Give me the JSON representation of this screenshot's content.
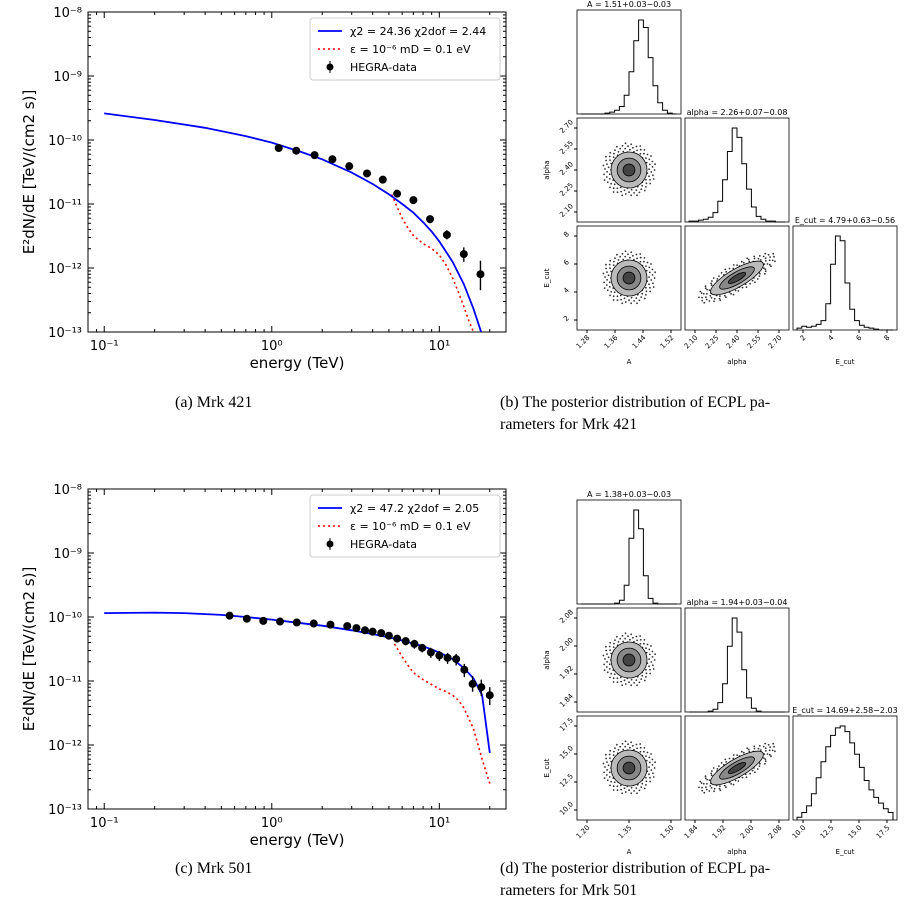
{
  "captions": {
    "a": "(a) Mrk 421",
    "b_line1": "(b) The posterior distribution of ECPL pa-",
    "b_line2": "rameters for Mrk 421",
    "c": "(c) Mrk 501",
    "d_line1": "(d) The posterior distribution of ECPL pa-",
    "d_line2": "rameters for Mrk 501"
  },
  "chart_data": [
    {
      "id": "a",
      "type": "line",
      "xlabel": "energy (TeV)",
      "ylabel": "E²dN/dE [TeV/(cm2 s)]",
      "xscale": "log",
      "yscale": "log",
      "xlim": [
        0.08,
        25
      ],
      "ylim": [
        1e-13,
        1e-08
      ],
      "xticks": [
        "10⁻¹",
        "10⁰",
        "10¹"
      ],
      "yticks": [
        "10⁻¹³",
        "10⁻¹²",
        "10⁻¹¹",
        "10⁻¹⁰",
        "10⁻⁹",
        "10⁻⁸"
      ],
      "legend_position": "top-right",
      "legend": [
        "χ2 = 24.36 χ2dof = 2.44",
        "ε = 10⁻⁶  mD = 0.1 eV",
        "HEGRA-data"
      ],
      "colors": {
        "fit": "#0000ff",
        "alp": "#ff0000",
        "data": "#000000"
      },
      "series": [
        {
          "name": "χ2 = 24.36 χ2dof = 2.44",
          "x": [
            0.1,
            0.2,
            0.4,
            0.7,
            1,
            1.5,
            2,
            3,
            4,
            5,
            6,
            7,
            8,
            9,
            10,
            12,
            14,
            16,
            18
          ],
          "y": [
            2.6e-10,
            2.05e-10,
            1.55e-10,
            1.15e-10,
            9.1e-11,
            6.5e-11,
            5e-11,
            3.1e-11,
            2.05e-11,
            1.42e-11,
            1e-11,
            7.3e-12,
            5.2e-12,
            3.7e-12,
            2.6e-12,
            1.25e-12,
            5.6e-13,
            2.3e-13,
            9e-14
          ]
        },
        {
          "name": "ε = 10⁻⁶  mD = 0.1 eV",
          "x": [
            5.2,
            5.6,
            6,
            6.5,
            7,
            8,
            9,
            10,
            11,
            12,
            13,
            14,
            15,
            16
          ],
          "y": [
            1.4e-11,
            9e-12,
            6e-12,
            4.2e-12,
            3.2e-12,
            2.4e-12,
            2e-12,
            1.6e-12,
            1.1e-12,
            7e-13,
            4.2e-13,
            2.5e-13,
            1.5e-13,
            1e-13
          ]
        },
        {
          "name": "HEGRA-data",
          "x": [
            1.1,
            1.4,
            1.8,
            2.3,
            2.9,
            3.7,
            4.6,
            5.6,
            7.0,
            8.8,
            11.1,
            14.0,
            17.6
          ],
          "y": [
            7.5e-11,
            6.8e-11,
            5.8e-11,
            5e-11,
            3.9e-11,
            3e-11,
            2.4e-11,
            1.45e-11,
            1.15e-11,
            5.8e-12,
            3.3e-12,
            1.65e-12,
            8e-13
          ],
          "err_lo": [
            6.8e-11,
            6.2e-11,
            5.3e-11,
            4.6e-11,
            3.6e-11,
            2.75e-11,
            2.15e-11,
            1.28e-11,
            1e-11,
            5e-12,
            2.8e-12,
            1.25e-12,
            4.5e-13
          ],
          "err_hi": [
            8.2e-11,
            7.4e-11,
            6.3e-11,
            5.4e-11,
            4.2e-11,
            3.25e-11,
            2.65e-11,
            1.62e-11,
            1.3e-11,
            6.6e-12,
            3.9e-12,
            2.1e-12,
            1.3e-12
          ]
        }
      ]
    },
    {
      "id": "c",
      "type": "line",
      "xlabel": "energy (TeV)",
      "ylabel": "E²dN/dE [TeV/(cm2 s)]",
      "xscale": "log",
      "yscale": "log",
      "xlim": [
        0.08,
        25
      ],
      "ylim": [
        1e-13,
        1e-08
      ],
      "xticks": [
        "10⁻¹",
        "10⁰",
        "10¹"
      ],
      "yticks": [
        "10⁻¹³",
        "10⁻¹²",
        "10⁻¹¹",
        "10⁻¹⁰",
        "10⁻⁹",
        "10⁻⁸"
      ],
      "legend_position": "top-right",
      "legend": [
        "χ2 = 47.2 χ2dof = 2.05",
        "ε = 10⁻⁶  mD = 0.1 eV",
        "HEGRA-data"
      ],
      "colors": {
        "fit": "#0000ff",
        "alp": "#ff0000",
        "data": "#000000"
      },
      "series": [
        {
          "name": "χ2 = 47.2 χ2dof = 2.05",
          "x": [
            0.1,
            0.2,
            0.3,
            0.5,
            0.7,
            1,
            1.5,
            2,
            3,
            4,
            5,
            6,
            8,
            10,
            12,
            14,
            16,
            18,
            20
          ],
          "y": [
            1.15e-10,
            1.17e-10,
            1.15e-10,
            1.08e-10,
            1e-10,
            9.1e-11,
            8e-11,
            7.3e-11,
            6.2e-11,
            5.4e-11,
            4.8e-11,
            4.3e-11,
            3.5e-11,
            2.8e-11,
            2.2e-11,
            1.6e-11,
            1.1e-11,
            6e-12,
            7.5e-13
          ]
        },
        {
          "name": "ε = 10⁻⁶  mD = 0.1 eV",
          "x": [
            5.4,
            6,
            6.5,
            7,
            8,
            9,
            10,
            11,
            12,
            13,
            14,
            16,
            18,
            20
          ],
          "y": [
            3.8e-11,
            2.4e-11,
            1.75e-11,
            1.35e-11,
            1.05e-11,
            8.8e-12,
            7.5e-12,
            6.8e-12,
            6e-12,
            5e-12,
            3.8e-12,
            1.8e-12,
            6e-13,
            2.5e-13
          ]
        },
        {
          "name": "HEGRA-data",
          "x": [
            0.56,
            0.71,
            0.89,
            1.12,
            1.41,
            1.78,
            2.24,
            2.82,
            3.2,
            3.6,
            4.0,
            4.5,
            5.0,
            5.6,
            6.3,
            7.1,
            7.9,
            8.9,
            10.0,
            11.2,
            12.6,
            14.1,
            15.8,
            17.8,
            20.0
          ],
          "y": [
            1.05e-10,
            9.4e-11,
            8.7e-11,
            8.5e-11,
            8.2e-11,
            7.9e-11,
            7.6e-11,
            7.2e-11,
            6.7e-11,
            6.2e-11,
            5.9e-11,
            5.6e-11,
            5.1e-11,
            4.6e-11,
            4.2e-11,
            3.8e-11,
            3.3e-11,
            2.8e-11,
            2.5e-11,
            2.3e-11,
            2.2e-11,
            1.5e-11,
            9e-12,
            8e-12,
            6e-12
          ],
          "err_lo": [
            9.6e-11,
            8.7e-11,
            8.1e-11,
            7.9e-11,
            7.6e-11,
            7.3e-11,
            7e-11,
            6.6e-11,
            6.1e-11,
            5.6e-11,
            5.3e-11,
            5e-11,
            4.5e-11,
            4e-11,
            3.6e-11,
            3.2e-11,
            2.8e-11,
            2.3e-11,
            2.05e-11,
            1.85e-11,
            1.75e-11,
            1.15e-11,
            6.8e-12,
            5.8e-12,
            4.2e-12
          ],
          "err_hi": [
            1.14e-10,
            1.01e-10,
            9.3e-11,
            9.1e-11,
            8.8e-11,
            8.5e-11,
            8.2e-11,
            7.8e-11,
            7.3e-11,
            6.8e-11,
            6.5e-11,
            6.2e-11,
            5.7e-11,
            5.2e-11,
            4.8e-11,
            4.4e-11,
            3.8e-11,
            3.3e-11,
            2.95e-11,
            2.75e-11,
            2.65e-11,
            1.85e-11,
            1.2e-11,
            1.05e-11,
            8e-12
          ]
        }
      ]
    },
    {
      "id": "b",
      "type": "heatmap",
      "titles": [
        "A = 1.51+0.03−0.03",
        "alpha = 2.26+0.07−0.08",
        "E_cut = 4.79+0.63−0.56"
      ],
      "labels": [
        "A",
        "alpha",
        "E_cut"
      ],
      "A_ticks": [
        "1.28",
        "1.36",
        "1.44",
        "1.52"
      ],
      "alpha_ticks": [
        "2.10",
        "2.25",
        "2.40",
        "2.55",
        "2.70"
      ],
      "Ecut_ticks": [
        "2",
        "4",
        "6",
        "8"
      ],
      "medians": {
        "A": 1.51,
        "alpha": 2.26,
        "E_cut": 4.79
      },
      "hist_A": [
        0,
        0,
        0,
        0,
        0,
        1,
        2,
        4,
        8,
        20,
        45,
        78,
        100,
        92,
        60,
        30,
        12,
        4,
        1,
        0
      ],
      "hist_alpha": [
        1,
        1,
        2,
        3,
        5,
        10,
        22,
        45,
        75,
        100,
        90,
        62,
        35,
        16,
        6,
        3,
        1,
        1,
        0,
        0
      ],
      "hist_Ecut": [
        2,
        4,
        3,
        4,
        6,
        10,
        28,
        70,
        100,
        95,
        50,
        22,
        10,
        5,
        3,
        2,
        1,
        0,
        0,
        0
      ]
    },
    {
      "id": "d",
      "type": "heatmap",
      "titles": [
        "A = 1.38+0.03−0.03",
        "alpha = 1.94+0.03−0.04",
        "E_cut = 14.69+2.58−2.03"
      ],
      "labels": [
        "A",
        "alpha",
        "E_cut"
      ],
      "A_ticks": [
        "1.20",
        "1.35",
        "1.50"
      ],
      "alpha_ticks": [
        "1.84",
        "1.92",
        "2.00",
        "2.08"
      ],
      "Ecut_ticks": [
        "10.0",
        "12.5",
        "15.0",
        "17.5"
      ],
      "medians": {
        "A": 1.38,
        "alpha": 1.94,
        "E_cut": 14.69
      },
      "hist_A": [
        0,
        0,
        0,
        0,
        0,
        0,
        0,
        1,
        4,
        20,
        70,
        100,
        80,
        30,
        6,
        1,
        0,
        0,
        0,
        0
      ],
      "hist_alpha": [
        0,
        0,
        0,
        0,
        1,
        3,
        10,
        30,
        70,
        100,
        85,
        45,
        15,
        4,
        1,
        0,
        0,
        0,
        0,
        0
      ],
      "hist_Ecut": [
        3,
        8,
        15,
        28,
        45,
        62,
        78,
        90,
        98,
        100,
        94,
        82,
        70,
        56,
        42,
        32,
        24,
        18,
        12,
        8
      ]
    }
  ]
}
